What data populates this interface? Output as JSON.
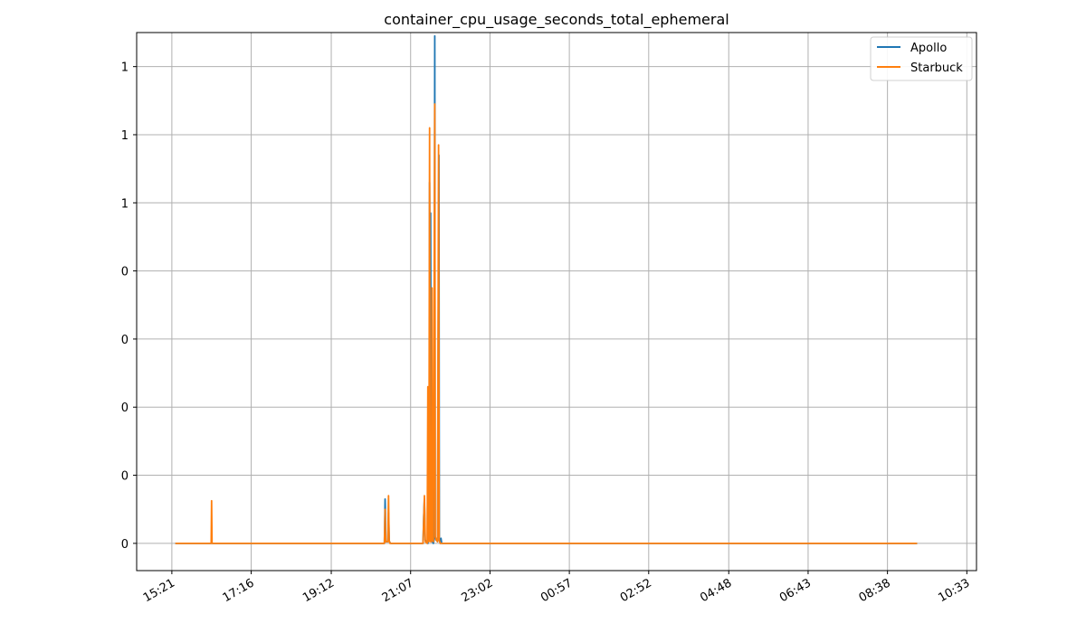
{
  "chart_data": {
    "type": "line",
    "title": "container_cpu_usage_seconds_total_ephemeral",
    "xlabel": "",
    "ylabel": "",
    "x_ticks": [
      "15:21",
      "17:16",
      "19:12",
      "21:07",
      "23:02",
      "00:57",
      "02:52",
      "04:48",
      "06:43",
      "08:38",
      "10:33"
    ],
    "x_tick_minutes": [
      921,
      1036,
      1152,
      1267,
      1382,
      1497,
      1612,
      1728,
      1843,
      1958,
      2073
    ],
    "y_ticks": [
      "0",
      "0",
      "0",
      "0",
      "0",
      "1",
      "1",
      "1"
    ],
    "y_tick_values": [
      0.0,
      0.2,
      0.4,
      0.6,
      0.8,
      1.0,
      1.2,
      1.4
    ],
    "xlim_minutes": [
      870,
      2087
    ],
    "ylim": [
      -0.08,
      1.5
    ],
    "grid": true,
    "legend_position": "top-right",
    "series": [
      {
        "name": "Apollo",
        "color": "#1f77b4",
        "points": [
          [
            926,
            0.0
          ],
          [
            932,
            0.0
          ],
          [
            1000,
            0.0
          ],
          [
            1100,
            0.0
          ],
          [
            1229,
            0.0
          ],
          [
            1230,
            0.13
          ],
          [
            1230.5,
            0.09
          ],
          [
            1231,
            0.005
          ],
          [
            1234,
            0.005
          ],
          [
            1235,
            0.09
          ],
          [
            1236,
            0.005
          ],
          [
            1238,
            0.0
          ],
          [
            1285,
            0.0
          ],
          [
            1286,
            0.08
          ],
          [
            1287,
            0.13
          ],
          [
            1287.5,
            0.07
          ],
          [
            1288,
            0.01
          ],
          [
            1292,
            0.0
          ],
          [
            1292.5,
            0.42
          ],
          [
            1293,
            0.05
          ],
          [
            1294,
            0.01
          ],
          [
            1294.5,
            1.06
          ],
          [
            1295,
            0.84
          ],
          [
            1296,
            0.97
          ],
          [
            1297,
            0.01
          ],
          [
            1300,
            0.0
          ],
          [
            1301,
            0.01
          ],
          [
            1302,
            1.49
          ],
          [
            1302.6,
            0.02
          ],
          [
            1304,
            0.01
          ],
          [
            1306,
            0.005
          ],
          [
            1308,
            1.14
          ],
          [
            1308.6,
            0.01
          ],
          [
            1310,
            0.0
          ],
          [
            1311,
            0.015
          ],
          [
            1312,
            0.0
          ],
          [
            1500,
            0.0
          ],
          [
            1700,
            0.0
          ],
          [
            1900,
            0.0
          ],
          [
            2001,
            0.0
          ]
        ]
      },
      {
        "name": "Starbuck",
        "color": "#ff7f0e",
        "points": [
          [
            926,
            0.0
          ],
          [
            932,
            0.0
          ],
          [
            978,
            0.0
          ],
          [
            978.6,
            0.125
          ],
          [
            979.2,
            0.0
          ],
          [
            1000,
            0.0
          ],
          [
            1100,
            0.0
          ],
          [
            1229,
            0.0
          ],
          [
            1230,
            0.1
          ],
          [
            1230.5,
            0.03
          ],
          [
            1231,
            0.005
          ],
          [
            1234,
            0.005
          ],
          [
            1235,
            0.14
          ],
          [
            1235.8,
            0.01
          ],
          [
            1237,
            0.0
          ],
          [
            1285,
            0.0
          ],
          [
            1286,
            0.07
          ],
          [
            1287,
            0.14
          ],
          [
            1287.5,
            0.09
          ],
          [
            1288.3,
            0.005
          ],
          [
            1291,
            0.0
          ],
          [
            1292,
            0.46
          ],
          [
            1292.8,
            0.01
          ],
          [
            1293.5,
            0.005
          ],
          [
            1294.5,
            1.22
          ],
          [
            1295.2,
            0.01
          ],
          [
            1296,
            0.005
          ],
          [
            1297,
            0.005
          ],
          [
            1298,
            0.75
          ],
          [
            1298.7,
            0.01
          ],
          [
            1300,
            0.005
          ],
          [
            1302,
            1.29
          ],
          [
            1302.7,
            0.02
          ],
          [
            1304,
            0.01
          ],
          [
            1306,
            0.005
          ],
          [
            1307.5,
            1.17
          ],
          [
            1308.4,
            0.01
          ],
          [
            1310,
            0.0
          ],
          [
            1500,
            0.0
          ],
          [
            1700,
            0.0
          ],
          [
            1900,
            0.0
          ],
          [
            2001,
            0.0
          ]
        ]
      }
    ]
  }
}
